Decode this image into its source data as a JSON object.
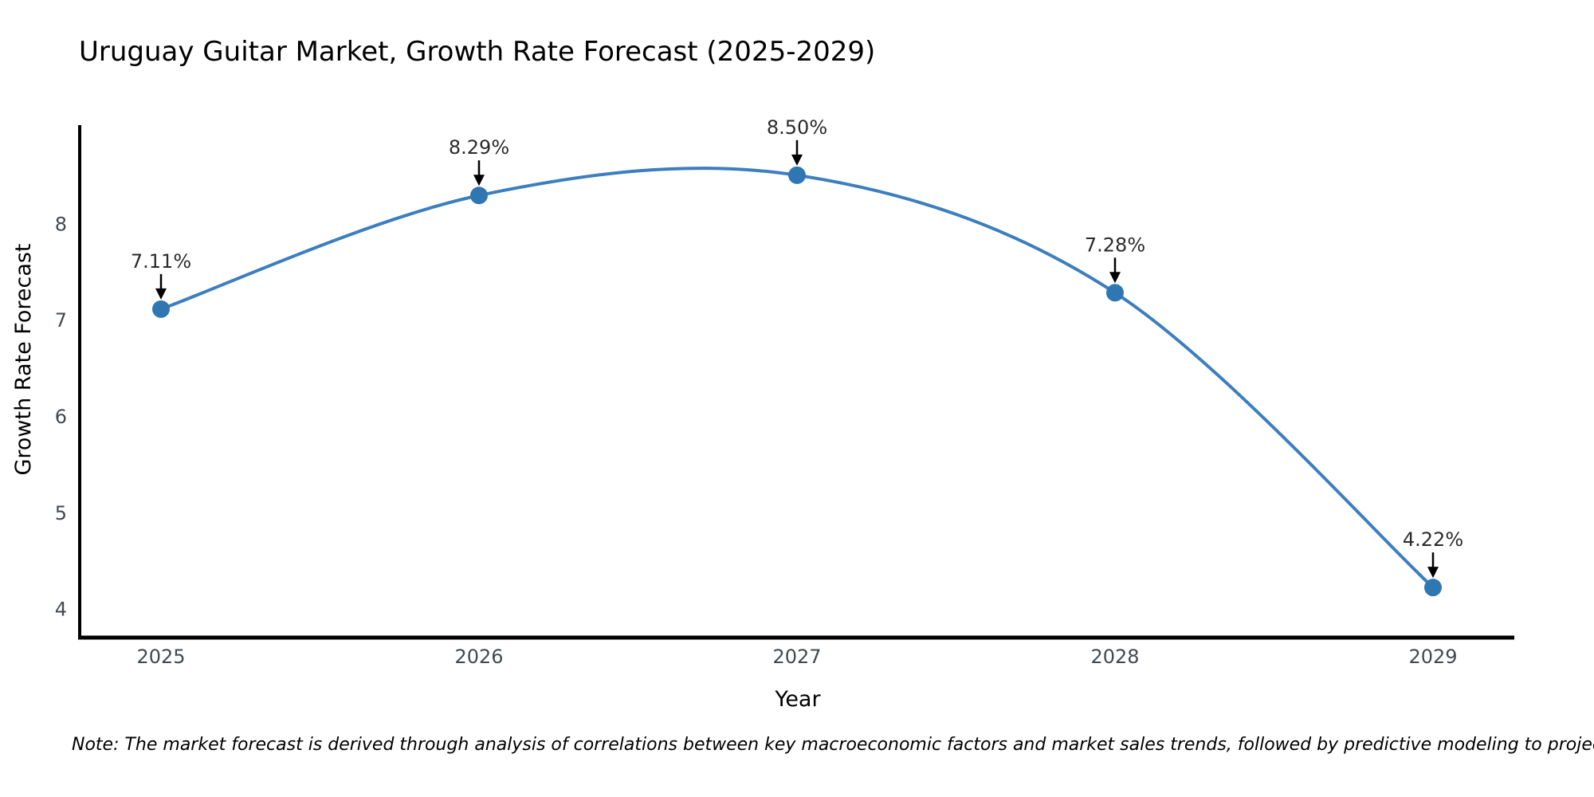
{
  "page": {
    "note": "Note: The market forecast is derived through analysis of correlations between key macroeconomic factors and market sales trends, followed by predictive modeling to project future sales."
  },
  "chart_data": {
    "type": "line",
    "title": "Uruguay Guitar Market, Growth Rate Forecast (2025-2029)",
    "xlabel": "Year",
    "ylabel": "Growth Rate Forecast",
    "categories": [
      "2025",
      "2026",
      "2027",
      "2028",
      "2029"
    ],
    "series": [
      {
        "name": "Growth Rate Forecast",
        "values": [
          7.11,
          8.29,
          8.5,
          7.28,
          4.22
        ]
      }
    ],
    "point_labels": [
      "7.11%",
      "8.29%",
      "8.50%",
      "7.28%",
      "4.22%"
    ],
    "yticks": [
      4,
      5,
      6,
      7,
      8
    ],
    "ylim": [
      3.7,
      9.02
    ],
    "grid": false,
    "legend": "none",
    "smooth": true,
    "marker_style": "circle",
    "annotation_style": "black-down-arrow",
    "colors": {
      "line": "#3c7ebf",
      "marker": "#2f76b3",
      "axis": "#000000",
      "tick_label": "#42494f",
      "title": "#2c3e5d",
      "axis_title": "#3f4a5a",
      "annotation": "#2b2b2b",
      "note": "#1c1c1c",
      "background": "#ffffff"
    }
  }
}
